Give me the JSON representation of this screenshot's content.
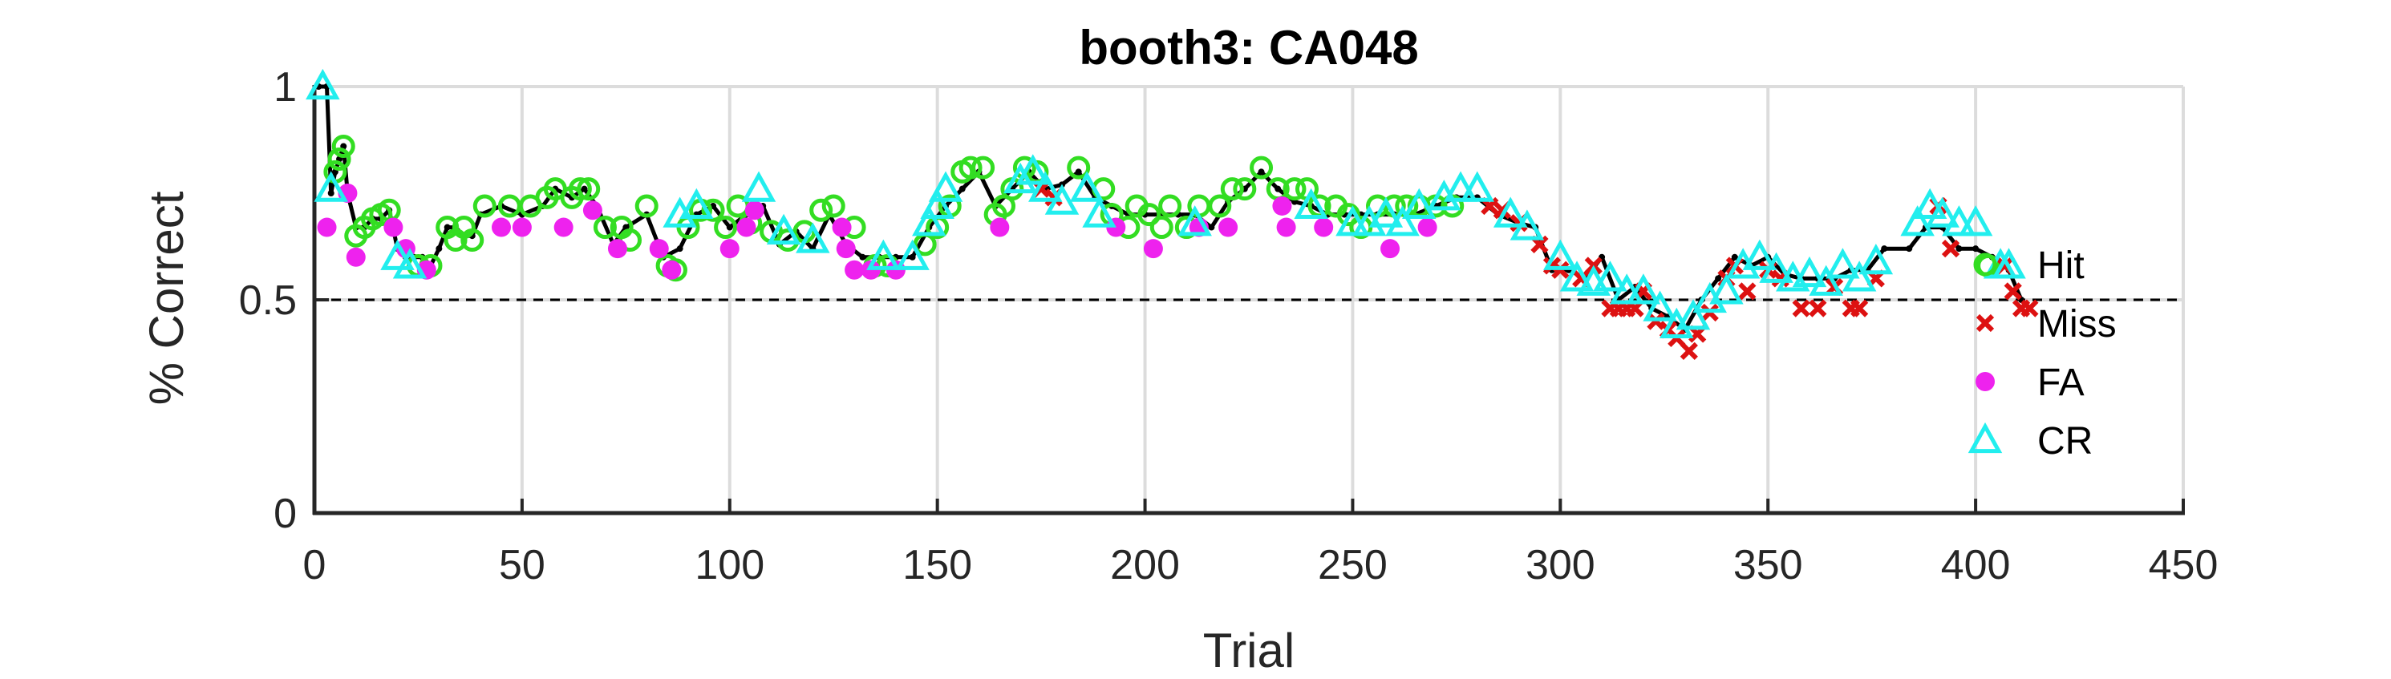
{
  "chart_data": {
    "type": "scatter",
    "title": "booth3: CA048",
    "xlabel": "Trial",
    "ylabel": "% Correct",
    "xlim": [
      0,
      450
    ],
    "ylim": [
      0,
      1
    ],
    "xticks": [
      0,
      50,
      100,
      150,
      200,
      250,
      300,
      350,
      400,
      450
    ],
    "yticks": [
      0,
      0.5,
      1
    ],
    "ytick_labels": [
      "0",
      "0.5",
      "1"
    ],
    "grid": true,
    "legend_position": "right",
    "reference_line": {
      "y": 0.5,
      "style": "dashed",
      "color": "#000000"
    },
    "running_accuracy": {
      "color": "#000000",
      "points": [
        [
          1,
          1
        ],
        [
          3,
          1
        ],
        [
          4,
          0.75
        ],
        [
          5,
          0.8
        ],
        [
          6,
          0.83
        ],
        [
          7,
          0.86
        ],
        [
          8,
          0.75
        ],
        [
          10,
          0.67
        ],
        [
          12,
          0.67
        ],
        [
          14,
          0.69
        ],
        [
          16,
          0.69
        ],
        [
          18,
          0.71
        ],
        [
          20,
          0.62
        ],
        [
          22,
          0.6
        ],
        [
          24,
          0.6
        ],
        [
          26,
          0.6
        ],
        [
          28,
          0.58
        ],
        [
          30,
          0.62
        ],
        [
          32,
          0.67
        ],
        [
          34,
          0.67
        ],
        [
          36,
          0.65
        ],
        [
          38,
          0.65
        ],
        [
          40,
          0.7
        ],
        [
          45,
          0.72
        ],
        [
          50,
          0.7
        ],
        [
          55,
          0.72
        ],
        [
          58,
          0.76
        ],
        [
          62,
          0.74
        ],
        [
          65,
          0.76
        ],
        [
          68,
          0.72
        ],
        [
          72,
          0.63
        ],
        [
          75,
          0.67
        ],
        [
          80,
          0.7
        ],
        [
          84,
          0.6
        ],
        [
          88,
          0.62
        ],
        [
          92,
          0.7
        ],
        [
          96,
          0.72
        ],
        [
          100,
          0.67
        ],
        [
          104,
          0.7
        ],
        [
          108,
          0.72
        ],
        [
          112,
          0.63
        ],
        [
          116,
          0.66
        ],
        [
          120,
          0.62
        ],
        [
          124,
          0.7
        ],
        [
          128,
          0.63
        ],
        [
          132,
          0.6
        ],
        [
          136,
          0.6
        ],
        [
          140,
          0.6
        ],
        [
          144,
          0.6
        ],
        [
          148,
          0.67
        ],
        [
          152,
          0.72
        ],
        [
          156,
          0.76
        ],
        [
          160,
          0.8
        ],
        [
          164,
          0.72
        ],
        [
          168,
          0.76
        ],
        [
          172,
          0.8
        ],
        [
          176,
          0.76
        ],
        [
          180,
          0.77
        ],
        [
          184,
          0.8
        ],
        [
          188,
          0.74
        ],
        [
          192,
          0.72
        ],
        [
          196,
          0.7
        ],
        [
          200,
          0.7
        ],
        [
          204,
          0.7
        ],
        [
          208,
          0.7
        ],
        [
          212,
          0.7
        ],
        [
          216,
          0.67
        ],
        [
          220,
          0.73
        ],
        [
          224,
          0.76
        ],
        [
          228,
          0.8
        ],
        [
          232,
          0.76
        ],
        [
          236,
          0.73
        ],
        [
          240,
          0.72
        ],
        [
          244,
          0.7
        ],
        [
          248,
          0.7
        ],
        [
          252,
          0.7
        ],
        [
          256,
          0.7
        ],
        [
          260,
          0.7
        ],
        [
          265,
          0.7
        ],
        [
          270,
          0.72
        ],
        [
          275,
          0.74
        ],
        [
          280,
          0.74
        ],
        [
          285,
          0.7
        ],
        [
          290,
          0.68
        ],
        [
          294,
          0.67
        ],
        [
          298,
          0.57
        ],
        [
          302,
          0.57
        ],
        [
          306,
          0.55
        ],
        [
          310,
          0.6
        ],
        [
          314,
          0.5
        ],
        [
          318,
          0.53
        ],
        [
          322,
          0.48
        ],
        [
          326,
          0.46
        ],
        [
          330,
          0.43
        ],
        [
          334,
          0.5
        ],
        [
          338,
          0.55
        ],
        [
          342,
          0.6
        ],
        [
          346,
          0.58
        ],
        [
          350,
          0.6
        ],
        [
          354,
          0.56
        ],
        [
          358,
          0.55
        ],
        [
          362,
          0.55
        ],
        [
          366,
          0.55
        ],
        [
          370,
          0.57
        ],
        [
          374,
          0.57
        ],
        [
          378,
          0.62
        ],
        [
          384,
          0.62
        ],
        [
          388,
          0.67
        ],
        [
          392,
          0.67
        ],
        [
          396,
          0.62
        ],
        [
          400,
          0.62
        ],
        [
          404,
          0.6
        ],
        [
          408,
          0.57
        ],
        [
          411,
          0.5
        ]
      ]
    },
    "series": [
      {
        "name": "Hit",
        "marker": "circle-open",
        "color": "#33dd22",
        "points": [
          [
            5,
            0.8
          ],
          [
            6,
            0.83
          ],
          [
            7,
            0.86
          ],
          [
            10,
            0.65
          ],
          [
            12,
            0.67
          ],
          [
            14,
            0.69
          ],
          [
            16,
            0.7
          ],
          [
            18,
            0.71
          ],
          [
            25,
            0.58
          ],
          [
            28,
            0.58
          ],
          [
            32,
            0.67
          ],
          [
            34,
            0.64
          ],
          [
            36,
            0.67
          ],
          [
            38,
            0.64
          ],
          [
            41,
            0.72
          ],
          [
            47,
            0.72
          ],
          [
            52,
            0.72
          ],
          [
            56,
            0.74
          ],
          [
            58,
            0.76
          ],
          [
            62,
            0.74
          ],
          [
            64,
            0.76
          ],
          [
            66,
            0.76
          ],
          [
            70,
            0.67
          ],
          [
            74,
            0.67
          ],
          [
            76,
            0.64
          ],
          [
            80,
            0.72
          ],
          [
            85,
            0.58
          ],
          [
            87,
            0.57
          ],
          [
            90,
            0.67
          ],
          [
            93,
            0.71
          ],
          [
            96,
            0.71
          ],
          [
            99,
            0.67
          ],
          [
            102,
            0.72
          ],
          [
            105,
            0.68
          ],
          [
            110,
            0.66
          ],
          [
            114,
            0.64
          ],
          [
            118,
            0.66
          ],
          [
            122,
            0.71
          ],
          [
            125,
            0.72
          ],
          [
            130,
            0.67
          ],
          [
            135,
            0.58
          ],
          [
            138,
            0.58
          ],
          [
            147,
            0.63
          ],
          [
            150,
            0.67
          ],
          [
            153,
            0.72
          ],
          [
            156,
            0.8
          ],
          [
            158,
            0.81
          ],
          [
            161,
            0.81
          ],
          [
            164,
            0.7
          ],
          [
            166,
            0.72
          ],
          [
            168,
            0.76
          ],
          [
            171,
            0.81
          ],
          [
            174,
            0.8
          ],
          [
            184,
            0.81
          ],
          [
            190,
            0.76
          ],
          [
            192,
            0.7
          ],
          [
            196,
            0.67
          ],
          [
            198,
            0.72
          ],
          [
            201,
            0.7
          ],
          [
            204,
            0.67
          ],
          [
            206,
            0.72
          ],
          [
            210,
            0.67
          ],
          [
            213,
            0.72
          ],
          [
            218,
            0.72
          ],
          [
            221,
            0.76
          ],
          [
            224,
            0.76
          ],
          [
            228,
            0.81
          ],
          [
            232,
            0.76
          ],
          [
            236,
            0.76
          ],
          [
            239,
            0.76
          ],
          [
            242,
            0.72
          ],
          [
            246,
            0.72
          ],
          [
            249,
            0.7
          ],
          [
            252,
            0.67
          ],
          [
            256,
            0.72
          ],
          [
            260,
            0.72
          ],
          [
            263,
            0.72
          ],
          [
            266,
            0.72
          ],
          [
            270,
            0.72
          ],
          [
            274,
            0.72
          ],
          [
            403,
            0.58
          ]
        ]
      },
      {
        "name": "Miss",
        "marker": "x",
        "color": "#dd1111",
        "points": [
          [
            175,
            0.76
          ],
          [
            178,
            0.74
          ],
          [
            283,
            0.72
          ],
          [
            286,
            0.71
          ],
          [
            290,
            0.68
          ],
          [
            295,
            0.63
          ],
          [
            298,
            0.58
          ],
          [
            300,
            0.57
          ],
          [
            305,
            0.55
          ],
          [
            308,
            0.58
          ],
          [
            312,
            0.48
          ],
          [
            314,
            0.48
          ],
          [
            316,
            0.48
          ],
          [
            318,
            0.48
          ],
          [
            320,
            0.52
          ],
          [
            323,
            0.45
          ],
          [
            326,
            0.43
          ],
          [
            328,
            0.41
          ],
          [
            331,
            0.38
          ],
          [
            333,
            0.42
          ],
          [
            336,
            0.47
          ],
          [
            340,
            0.55
          ],
          [
            342,
            0.58
          ],
          [
            345,
            0.52
          ],
          [
            350,
            0.57
          ],
          [
            353,
            0.55
          ],
          [
            358,
            0.48
          ],
          [
            362,
            0.48
          ],
          [
            366,
            0.53
          ],
          [
            370,
            0.48
          ],
          [
            372,
            0.48
          ],
          [
            376,
            0.55
          ],
          [
            391,
            0.72
          ],
          [
            394,
            0.62
          ],
          [
            407,
            0.58
          ],
          [
            409,
            0.52
          ],
          [
            411,
            0.48
          ],
          [
            413,
            0.48
          ]
        ]
      },
      {
        "name": "FA",
        "marker": "dot",
        "color": "#ee22ee",
        "points": [
          [
            3,
            0.67
          ],
          [
            8,
            0.75
          ],
          [
            10,
            0.6
          ],
          [
            19,
            0.67
          ],
          [
            22,
            0.62
          ],
          [
            27,
            0.57
          ],
          [
            45,
            0.67
          ],
          [
            50,
            0.67
          ],
          [
            60,
            0.67
          ],
          [
            67,
            0.71
          ],
          [
            73,
            0.62
          ],
          [
            83,
            0.62
          ],
          [
            86,
            0.57
          ],
          [
            100,
            0.62
          ],
          [
            104,
            0.67
          ],
          [
            106,
            0.71
          ],
          [
            127,
            0.67
          ],
          [
            128,
            0.62
          ],
          [
            130,
            0.57
          ],
          [
            134,
            0.57
          ],
          [
            140,
            0.57
          ],
          [
            165,
            0.67
          ],
          [
            193,
            0.67
          ],
          [
            202,
            0.62
          ],
          [
            213,
            0.67
          ],
          [
            220,
            0.67
          ],
          [
            233,
            0.72
          ],
          [
            234,
            0.67
          ],
          [
            243,
            0.67
          ],
          [
            259,
            0.62
          ],
          [
            268,
            0.67
          ]
        ]
      },
      {
        "name": "CR",
        "marker": "triangle-open",
        "color": "#22eeee",
        "points": [
          [
            2,
            1
          ],
          [
            4,
            0.76
          ],
          [
            20,
            0.6
          ],
          [
            23,
            0.58
          ],
          [
            88,
            0.7
          ],
          [
            92,
            0.72
          ],
          [
            107,
            0.76
          ],
          [
            113,
            0.66
          ],
          [
            120,
            0.64
          ],
          [
            137,
            0.6
          ],
          [
            144,
            0.6
          ],
          [
            148,
            0.68
          ],
          [
            150,
            0.72
          ],
          [
            152,
            0.76
          ],
          [
            170,
            0.78
          ],
          [
            173,
            0.8
          ],
          [
            176,
            0.76
          ],
          [
            180,
            0.73
          ],
          [
            186,
            0.76
          ],
          [
            189,
            0.7
          ],
          [
            212,
            0.68
          ],
          [
            240,
            0.72
          ],
          [
            250,
            0.68
          ],
          [
            254,
            0.68
          ],
          [
            258,
            0.7
          ],
          [
            262,
            0.68
          ],
          [
            266,
            0.72
          ],
          [
            272,
            0.74
          ],
          [
            276,
            0.76
          ],
          [
            280,
            0.76
          ],
          [
            288,
            0.7
          ],
          [
            292,
            0.67
          ],
          [
            300,
            0.6
          ],
          [
            304,
            0.55
          ],
          [
            308,
            0.54
          ],
          [
            312,
            0.55
          ],
          [
            316,
            0.52
          ],
          [
            320,
            0.52
          ],
          [
            324,
            0.48
          ],
          [
            328,
            0.44
          ],
          [
            332,
            0.46
          ],
          [
            336,
            0.5
          ],
          [
            340,
            0.52
          ],
          [
            344,
            0.58
          ],
          [
            348,
            0.6
          ],
          [
            352,
            0.57
          ],
          [
            356,
            0.55
          ],
          [
            360,
            0.56
          ],
          [
            364,
            0.54
          ],
          [
            368,
            0.58
          ],
          [
            372,
            0.55
          ],
          [
            376,
            0.59
          ],
          [
            386,
            0.68
          ],
          [
            389,
            0.72
          ],
          [
            392,
            0.7
          ],
          [
            396,
            0.68
          ],
          [
            400,
            0.68
          ],
          [
            406,
            0.58
          ],
          [
            408,
            0.58
          ]
        ]
      }
    ]
  }
}
